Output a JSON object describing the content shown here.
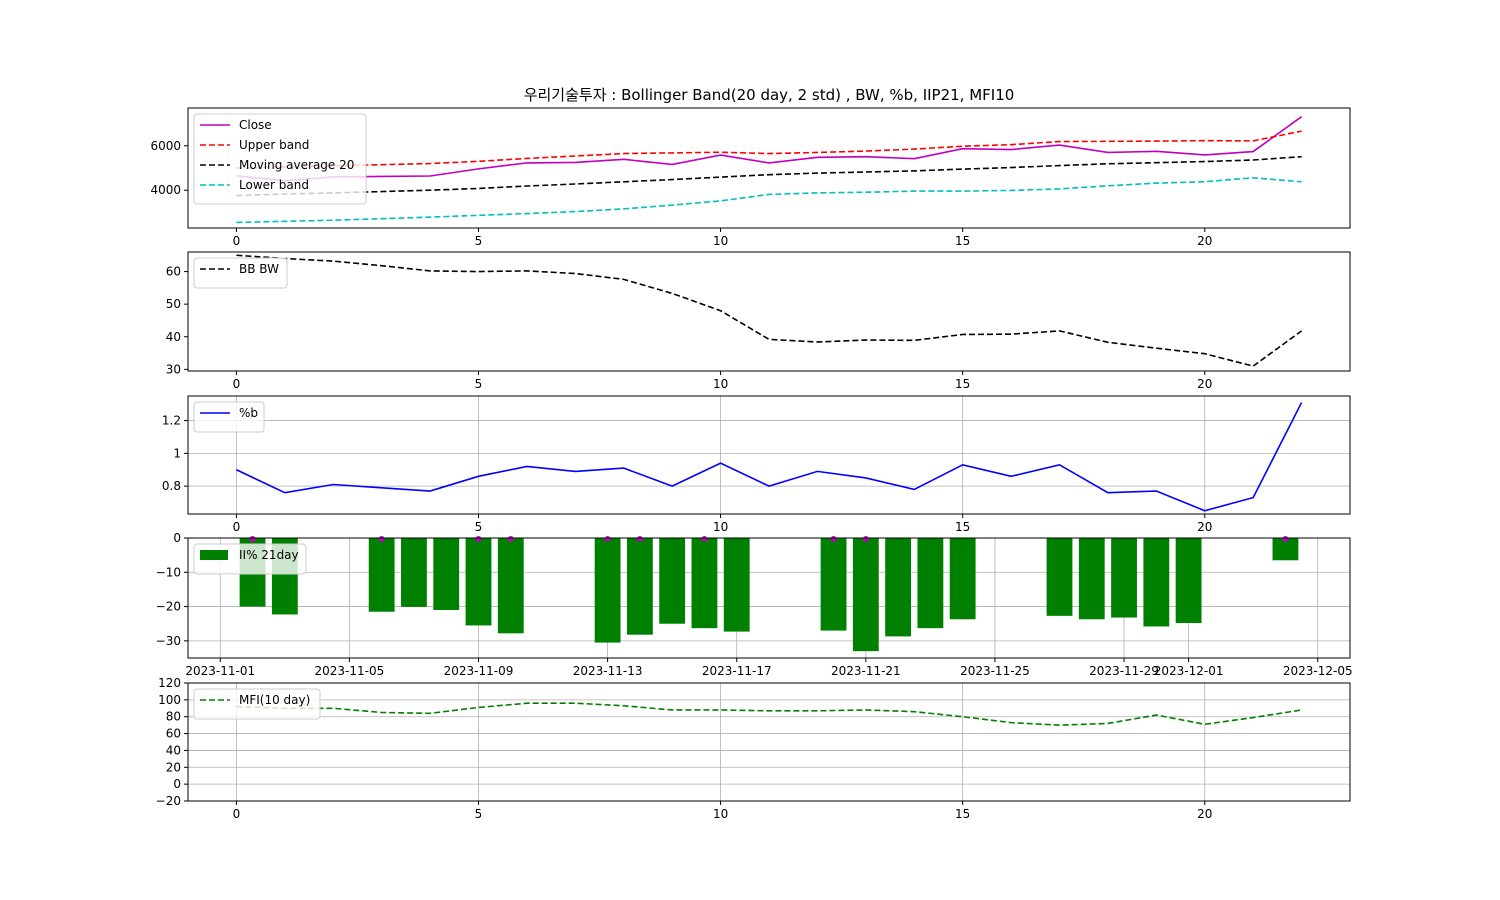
{
  "title": "우리기술투자 : Bollinger Band(20 day, 2 std) , BW, %b, IIP21, MFI10",
  "colors": {
    "close": "#bf00bf",
    "upper": "#ff0000",
    "ma": "#000000",
    "lower": "#00bfbf",
    "pctb": "#0000ff",
    "bar": "#008000",
    "marker": "#bf00bf",
    "mfi": "#008000",
    "grid": "#b0b0b0"
  },
  "chart_data": [
    {
      "type": "line",
      "panel": "bollinger",
      "x": [
        0,
        1,
        2,
        3,
        4,
        5,
        6,
        7,
        8,
        9,
        10,
        11,
        12,
        13,
        14,
        15,
        16,
        17,
        18,
        19,
        20,
        21,
        22
      ],
      "xlim": [
        -1,
        23
      ],
      "ylim": [
        2300,
        7700
      ],
      "xticks": [
        0,
        5,
        10,
        15,
        20
      ],
      "yticks": [
        4000,
        6000
      ],
      "grid": false,
      "legend": "top-left",
      "series": [
        {
          "name": "Close",
          "style": "solid",
          "values": [
            4650,
            4430,
            4600,
            4620,
            4640,
            4960,
            5230,
            5250,
            5390,
            5160,
            5580,
            5230,
            5480,
            5510,
            5420,
            5870,
            5830,
            6030,
            5700,
            5750,
            5590,
            5740,
            7310
          ]
        },
        {
          "name": "Upper band",
          "style": "dashed",
          "values": [
            5000,
            5050,
            5100,
            5150,
            5200,
            5300,
            5430,
            5540,
            5650,
            5680,
            5710,
            5650,
            5700,
            5760,
            5850,
            5980,
            6050,
            6190,
            6200,
            6210,
            6230,
            6220,
            6660
          ]
        },
        {
          "name": "Moving average 20",
          "style": "dashed",
          "values": [
            3760,
            3830,
            3880,
            3940,
            4000,
            4080,
            4190,
            4280,
            4380,
            4480,
            4590,
            4700,
            4770,
            4820,
            4870,
            4950,
            5020,
            5110,
            5190,
            5240,
            5290,
            5360,
            5510
          ]
        },
        {
          "name": "Lower band",
          "style": "dashed",
          "values": [
            2550,
            2600,
            2650,
            2720,
            2790,
            2870,
            2950,
            3040,
            3160,
            3330,
            3520,
            3810,
            3880,
            3910,
            3960,
            3960,
            3990,
            4060,
            4200,
            4320,
            4380,
            4560,
            4380
          ]
        }
      ]
    },
    {
      "type": "line",
      "panel": "bandwidth",
      "x": [
        0,
        1,
        2,
        3,
        4,
        5,
        6,
        7,
        8,
        9,
        10,
        11,
        12,
        13,
        14,
        15,
        16,
        17,
        18,
        19,
        20,
        21,
        22
      ],
      "xlim": [
        -1,
        23
      ],
      "ylim": [
        29.5,
        66
      ],
      "xticks": [
        0,
        5,
        10,
        15,
        20
      ],
      "yticks": [
        30,
        40,
        50,
        60
      ],
      "grid": false,
      "legend": "top-left",
      "series": [
        {
          "name": "BB BW",
          "style": "dashed",
          "values": [
            65.0,
            64.0,
            63.2,
            61.8,
            60.2,
            60.0,
            60.2,
            59.4,
            57.6,
            53.3,
            48.0,
            39.2,
            38.4,
            39.0,
            38.9,
            40.7,
            40.8,
            41.8,
            38.3,
            36.5,
            34.8,
            31.0,
            41.8
          ]
        }
      ]
    },
    {
      "type": "line",
      "panel": "percent_b",
      "x": [
        0,
        1,
        2,
        3,
        4,
        5,
        6,
        7,
        8,
        9,
        10,
        11,
        12,
        13,
        14,
        15,
        16,
        17,
        18,
        19,
        20,
        21,
        22
      ],
      "xlim": [
        -1,
        23
      ],
      "ylim": [
        0.63,
        1.35
      ],
      "xticks": [
        0,
        5,
        10,
        15,
        20
      ],
      "yticks": [
        0.8,
        1.0,
        1.2
      ],
      "grid": true,
      "legend": "top-left",
      "series": [
        {
          "name": "%b",
          "style": "solid",
          "values": [
            0.9,
            0.76,
            0.81,
            0.79,
            0.77,
            0.86,
            0.92,
            0.89,
            0.91,
            0.8,
            0.94,
            0.8,
            0.89,
            0.85,
            0.78,
            0.93,
            0.86,
            0.93,
            0.76,
            0.77,
            0.65,
            0.73,
            1.31
          ]
        }
      ]
    },
    {
      "type": "bar",
      "panel": "iip",
      "x": [
        "2023-11-02",
        "2023-11-03",
        "2023-11-06",
        "2023-11-07",
        "2023-11-08",
        "2023-11-09",
        "2023-11-10",
        "2023-11-13",
        "2023-11-14",
        "2023-11-15",
        "2023-11-16",
        "2023-11-17",
        "2023-11-20",
        "2023-11-21",
        "2023-11-22",
        "2023-11-23",
        "2023-11-24",
        "2023-11-27",
        "2023-11-28",
        "2023-11-29",
        "2023-11-30",
        "2023-12-01",
        "2023-12-04"
      ],
      "xlim": [
        "2023-10-31",
        "2023-12-06"
      ],
      "ylim": [
        -35,
        0
      ],
      "xticks": [
        "2023-11-01",
        "2023-11-05",
        "2023-11-09",
        "2023-11-13",
        "2023-11-17",
        "2023-11-21",
        "2023-11-25",
        "2023-11-29",
        "2023-12-01",
        "2023-12-05"
      ],
      "yticks": [
        -30,
        -20,
        -10,
        0
      ],
      "ytick_labels": [
        "−30",
        "−20",
        "−10",
        "0"
      ],
      "grid": true,
      "legend": "top-left",
      "series": [
        {
          "name": "II% 21day",
          "values": [
            -20.0,
            -22.3,
            -21.5,
            -20.1,
            -21.0,
            -25.5,
            -27.8,
            -30.5,
            -28.2,
            -25.0,
            -26.3,
            -27.3,
            -27.0,
            -33.0,
            -28.7,
            -26.3,
            -23.7,
            -22.7,
            -23.7,
            -23.2,
            -25.8,
            -24.8,
            -6.5
          ]
        }
      ],
      "markers_at": [
        "2023-11-02",
        "2023-11-06",
        "2023-11-09",
        "2023-11-10",
        "2023-11-13",
        "2023-11-14",
        "2023-11-16",
        "2023-11-20",
        "2023-11-21",
        "2023-12-04"
      ]
    },
    {
      "type": "line",
      "panel": "mfi",
      "x": [
        0,
        1,
        2,
        3,
        4,
        5,
        6,
        7,
        8,
        9,
        10,
        11,
        12,
        13,
        14,
        15,
        16,
        17,
        18,
        19,
        20,
        21,
        22
      ],
      "xlim": [
        -1,
        23
      ],
      "ylim": [
        -20,
        120
      ],
      "xticks": [
        0,
        5,
        10,
        15,
        20
      ],
      "yticks": [
        -20,
        0,
        20,
        40,
        60,
        80,
        100,
        120
      ],
      "ytick_labels": [
        "−20",
        "0",
        "20",
        "40",
        "60",
        "80",
        "100",
        "120"
      ],
      "grid": true,
      "legend": "top-left",
      "series": [
        {
          "name": "MFI(10 day)",
          "style": "dashed",
          "values": [
            92,
            90,
            90,
            85,
            84,
            91,
            96,
            96,
            93,
            88,
            88,
            87,
            87,
            88,
            86,
            80,
            73,
            70,
            72,
            82,
            71,
            79,
            88
          ]
        }
      ]
    }
  ]
}
